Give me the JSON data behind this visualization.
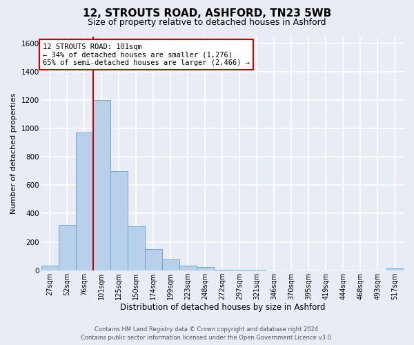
{
  "title": "12, STROUTS ROAD, ASHFORD, TN23 5WB",
  "subtitle": "Size of property relative to detached houses in Ashford",
  "xlabel": "Distribution of detached houses by size in Ashford",
  "ylabel": "Number of detached properties",
  "bar_labels": [
    "27sqm",
    "52sqm",
    "76sqm",
    "101sqm",
    "125sqm",
    "150sqm",
    "174sqm",
    "199sqm",
    "223sqm",
    "248sqm",
    "272sqm",
    "297sqm",
    "321sqm",
    "346sqm",
    "370sqm",
    "395sqm",
    "419sqm",
    "444sqm",
    "468sqm",
    "493sqm",
    "517sqm"
  ],
  "bar_values": [
    30,
    320,
    970,
    1200,
    700,
    310,
    150,
    75,
    30,
    25,
    5,
    5,
    3,
    0,
    0,
    0,
    0,
    0,
    0,
    0,
    15
  ],
  "bar_color": "#b8d0ea",
  "bar_edge_color": "#6aaad4",
  "ylim_max": 1650,
  "yticks": [
    0,
    200,
    400,
    600,
    800,
    1000,
    1200,
    1400,
    1600
  ],
  "vline_index": 3,
  "vline_color": "#cc0000",
  "annot_line1": "12 STROUTS ROAD: 101sqm",
  "annot_line2": "← 34% of detached houses are smaller (1,276)",
  "annot_line3": "65% of semi-detached houses are larger (2,466) →",
  "bg_color": "#e8edf5",
  "grid_color": "#ffffff",
  "footer1": "Contains HM Land Registry data © Crown copyright and database right 2024.",
  "footer2": "Contains public sector information licensed under the Open Government Licence v3.0.",
  "title_fontsize": 11,
  "subtitle_fontsize": 9,
  "xlabel_fontsize": 8.5,
  "ylabel_fontsize": 8,
  "tick_fontsize": 7,
  "annot_fontsize": 7.5,
  "footer_fontsize": 6
}
